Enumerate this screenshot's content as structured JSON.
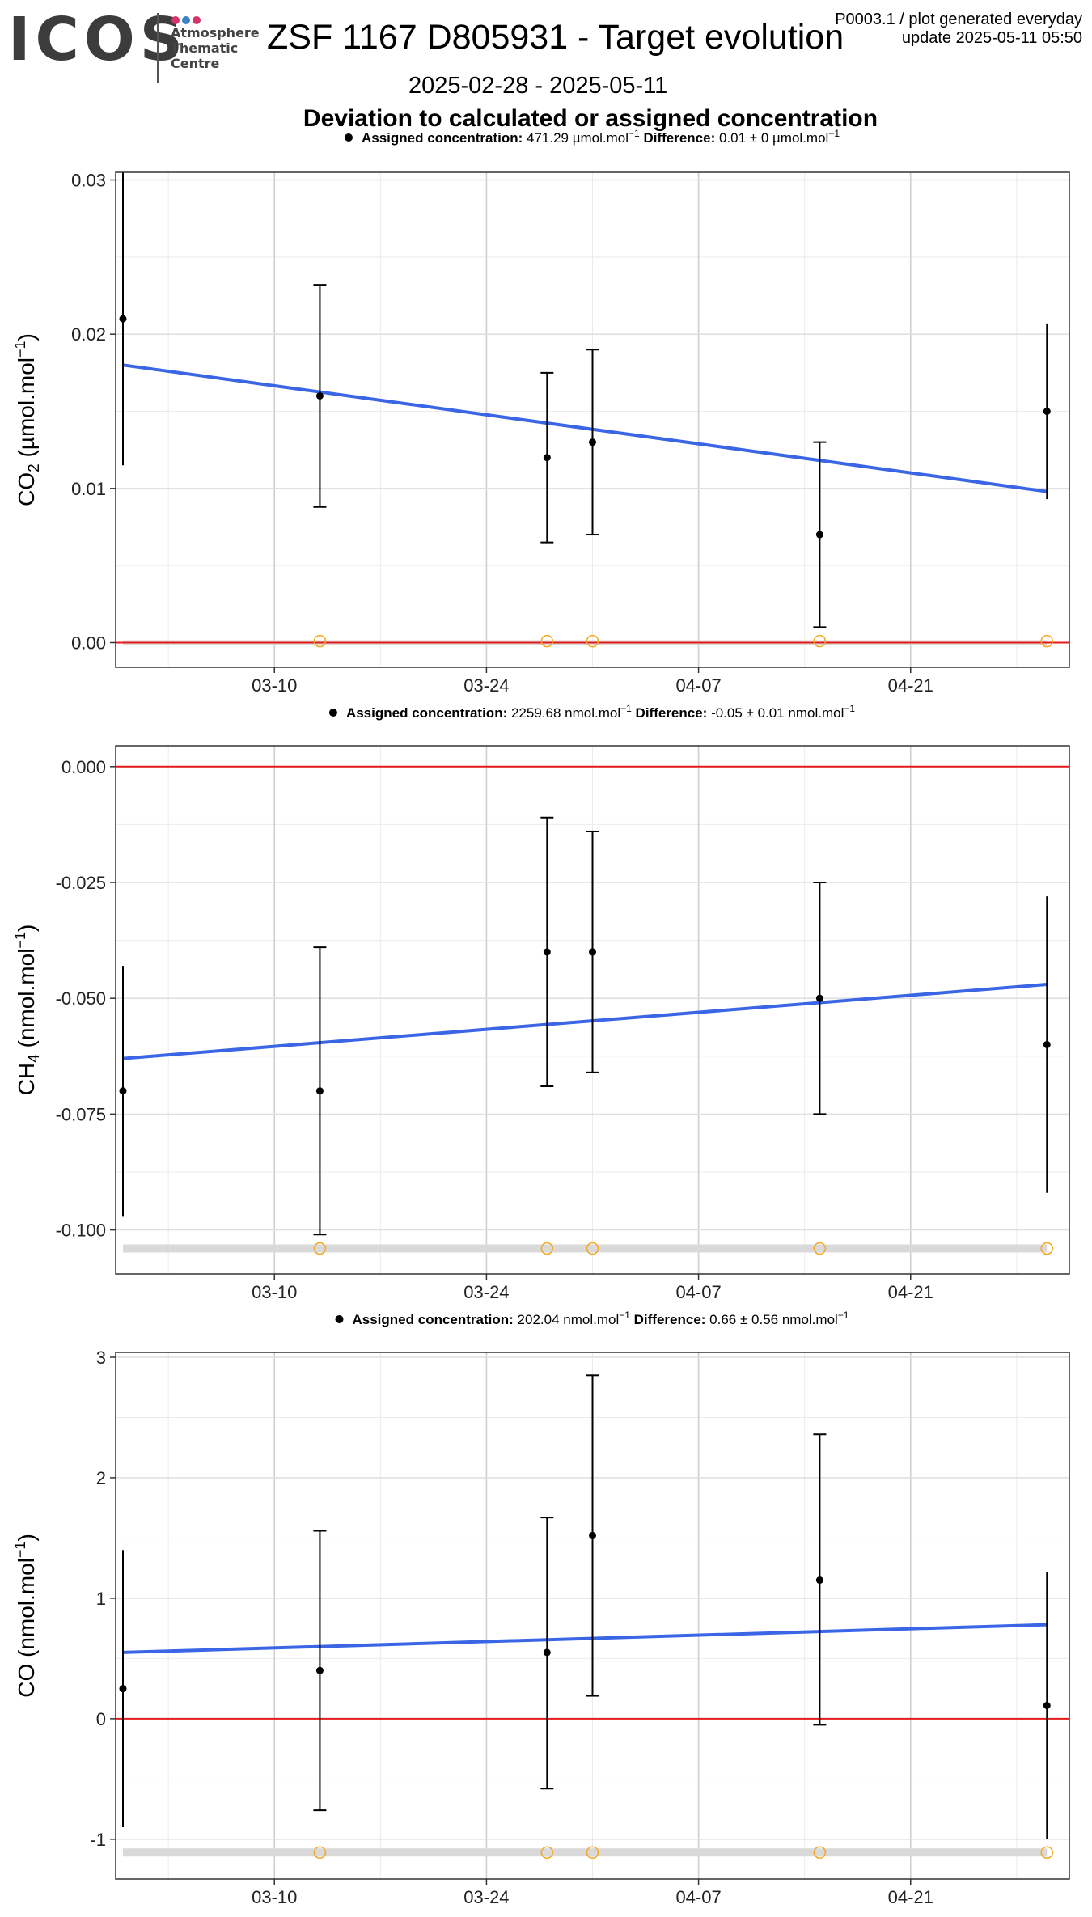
{
  "header": {
    "logo_text": "ICOS",
    "logo_sub": [
      "Atmosphere",
      "Thematic",
      "Centre"
    ],
    "logo_dot_colors": [
      "#d6336c",
      "#3b82c4",
      "#d6336c"
    ],
    "title": "ZSF 1167 D805931 - Target evolution",
    "date_range": "2025-02-28 - 2025-05-11",
    "subtitle": "Deviation to calculated or assigned concentration",
    "meta_line1": "P0003.1 / plot generated everyday",
    "meta_line2": "update  2025-05-11 05:50"
  },
  "colors": {
    "fit_line": "#3a66e6",
    "zero_line": "#e41a1c",
    "marker_ring": "#f5a623",
    "ribbon": "#d9d9d9"
  },
  "chart_data": [
    {
      "type": "scatter",
      "legend": {
        "label": "Assigned concentration:",
        "value": "471.29 µmol.mol",
        "diff_label": "Difference:",
        "diff_value": "0.01 ± 0 µmol.mol"
      },
      "ylabel": "CO",
      "ylabel_sub": "2",
      "ylabel_unit": "µmol.mol",
      "ylim": [
        -0.0016,
        0.0305
      ],
      "yticks": [
        0.0,
        0.01,
        0.02,
        0.03
      ],
      "ytick_labels": [
        "0.00",
        "0.01",
        "0.02",
        "0.03"
      ],
      "xlim": [
        "2025-02-28",
        "2025-05-01"
      ],
      "xticks": [
        "2025-03-10",
        "2025-03-24",
        "2025-04-07",
        "2025-04-21"
      ],
      "xtick_labels": [
        "03-10",
        "03-24",
        "04-07",
        "04-21"
      ],
      "points": [
        {
          "x": "2025-02-28",
          "y": 0.021,
          "err_low": 0.0115,
          "err_high": 0.0305
        },
        {
          "x": "2025-03-13",
          "y": 0.016,
          "err_low": 0.0088,
          "err_high": 0.0232
        },
        {
          "x": "2025-03-28",
          "y": 0.012,
          "err_low": 0.0065,
          "err_high": 0.0175
        },
        {
          "x": "2025-03-31",
          "y": 0.013,
          "err_low": 0.007,
          "err_high": 0.019
        },
        {
          "x": "2025-04-15",
          "y": 0.007,
          "err_low": 0.001,
          "err_high": 0.013
        },
        {
          "x": "2025-04-30",
          "y": 0.015,
          "err_low": 0.0093,
          "err_high": 0.0207
        }
      ],
      "fit": [
        {
          "x": "2025-02-28",
          "y": 0.018
        },
        {
          "x": "2025-04-30",
          "y": 0.0098
        }
      ],
      "zero_line": 0.0,
      "ribbon_y": 0.0,
      "markers": [
        {
          "x": "2025-03-13",
          "y": 0.0001
        },
        {
          "x": "2025-03-28",
          "y": 0.0001
        },
        {
          "x": "2025-03-31",
          "y": 0.0001
        },
        {
          "x": "2025-04-15",
          "y": 0.0001
        },
        {
          "x": "2025-04-30",
          "y": 0.0001
        }
      ]
    },
    {
      "type": "scatter",
      "legend": {
        "label": "Assigned concentration:",
        "value": "2259.68 nmol.mol",
        "diff_label": "Difference:",
        "diff_value": "-0.05 ± 0.01 nmol.mol"
      },
      "ylabel": "CH",
      "ylabel_sub": "4",
      "ylabel_unit": "nmol.mol",
      "ylim": [
        -0.1095,
        0.0045
      ],
      "yticks": [
        -0.1,
        -0.075,
        -0.05,
        -0.025,
        0.0
      ],
      "ytick_labels": [
        "-0.100",
        "-0.075",
        "-0.050",
        "-0.025",
        "0.000"
      ],
      "xlim": [
        "2025-02-28",
        "2025-05-01"
      ],
      "xticks": [
        "2025-03-10",
        "2025-03-24",
        "2025-04-07",
        "2025-04-21"
      ],
      "xtick_labels": [
        "03-10",
        "03-24",
        "04-07",
        "04-21"
      ],
      "points": [
        {
          "x": "2025-02-28",
          "y": -0.07,
          "err_low": -0.097,
          "err_high": -0.043
        },
        {
          "x": "2025-03-13",
          "y": -0.07,
          "err_low": -0.101,
          "err_high": -0.039
        },
        {
          "x": "2025-03-28",
          "y": -0.04,
          "err_low": -0.069,
          "err_high": -0.011
        },
        {
          "x": "2025-03-31",
          "y": -0.04,
          "err_low": -0.066,
          "err_high": -0.014
        },
        {
          "x": "2025-04-15",
          "y": -0.05,
          "err_low": -0.075,
          "err_high": -0.025
        },
        {
          "x": "2025-04-30",
          "y": -0.06,
          "err_low": -0.092,
          "err_high": -0.028
        }
      ],
      "fit": [
        {
          "x": "2025-02-28",
          "y": -0.063
        },
        {
          "x": "2025-04-30",
          "y": -0.047
        }
      ],
      "zero_line": 0.0,
      "ribbon_y": -0.104,
      "markers": [
        {
          "x": "2025-03-13",
          "y": -0.104
        },
        {
          "x": "2025-03-28",
          "y": -0.104
        },
        {
          "x": "2025-03-31",
          "y": -0.104
        },
        {
          "x": "2025-04-15",
          "y": -0.104
        },
        {
          "x": "2025-04-30",
          "y": -0.104
        }
      ]
    },
    {
      "type": "scatter",
      "legend": {
        "label": "Assigned concentration:",
        "value": "202.04 nmol.mol",
        "diff_label": "Difference:",
        "diff_value": "0.66 ± 0.56 nmol.mol"
      },
      "ylabel": "CO",
      "ylabel_sub": "",
      "ylabel_unit": "nmol.mol",
      "ylim": [
        -1.33,
        3.04
      ],
      "yticks": [
        -1,
        0,
        1,
        2,
        3
      ],
      "ytick_labels": [
        "-1",
        "0",
        "1",
        "2",
        "3"
      ],
      "xlim": [
        "2025-02-28",
        "2025-05-01"
      ],
      "xticks": [
        "2025-03-10",
        "2025-03-24",
        "2025-04-07",
        "2025-04-21"
      ],
      "xtick_labels": [
        "03-10",
        "03-24",
        "04-07",
        "04-21"
      ],
      "points": [
        {
          "x": "2025-02-28",
          "y": 0.25,
          "err_low": -0.9,
          "err_high": 1.4
        },
        {
          "x": "2025-03-13",
          "y": 0.4,
          "err_low": -0.76,
          "err_high": 1.56
        },
        {
          "x": "2025-03-28",
          "y": 0.55,
          "err_low": -0.58,
          "err_high": 1.67
        },
        {
          "x": "2025-03-31",
          "y": 1.52,
          "err_low": 0.19,
          "err_high": 2.85
        },
        {
          "x": "2025-04-15",
          "y": 1.15,
          "err_low": -0.05,
          "err_high": 2.36
        },
        {
          "x": "2025-04-30",
          "y": 0.11,
          "err_low": -1.0,
          "err_high": 1.22
        }
      ],
      "fit": [
        {
          "x": "2025-02-28",
          "y": 0.55
        },
        {
          "x": "2025-04-30",
          "y": 0.78
        }
      ],
      "zero_line": 0.0,
      "ribbon_y": -1.11,
      "markers": [
        {
          "x": "2025-03-13",
          "y": -1.11
        },
        {
          "x": "2025-03-28",
          "y": -1.11
        },
        {
          "x": "2025-03-31",
          "y": -1.11
        },
        {
          "x": "2025-04-15",
          "y": -1.11
        },
        {
          "x": "2025-04-30",
          "y": -1.11
        }
      ]
    }
  ]
}
